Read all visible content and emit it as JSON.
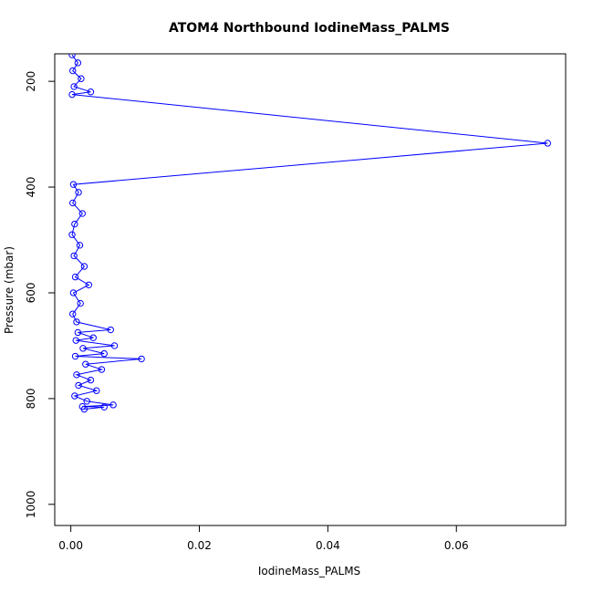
{
  "chart_data": {
    "type": "line",
    "title": "ATOM4 Northbound IodineMass_PALMS",
    "xlabel": "IodineMass_PALMS",
    "ylabel": "Pressure (mbar)",
    "xlim": [
      -0.0025,
      0.077
    ],
    "ylim": [
      1040,
      148
    ],
    "y_reversed": true,
    "xticks": [
      0.0,
      0.02,
      0.04,
      0.06
    ],
    "xtick_labels": [
      "0.00",
      "0.02",
      "0.04",
      "0.06"
    ],
    "yticks": [
      200,
      400,
      600,
      800,
      1000
    ],
    "ytick_labels": [
      "200",
      "400",
      "600",
      "800",
      "1000"
    ],
    "grid": false,
    "series": [
      {
        "color": "#0000ff",
        "marker": "open-circle",
        "points": [
          {
            "x": 0.0002,
            "p": 150
          },
          {
            "x": 0.0011,
            "p": 165
          },
          {
            "x": 0.0003,
            "p": 180
          },
          {
            "x": 0.0016,
            "p": 195
          },
          {
            "x": 0.0005,
            "p": 210
          },
          {
            "x": 0.0031,
            "p": 220
          },
          {
            "x": 0.0002,
            "p": 225
          },
          {
            "x": 0.0742,
            "p": 317
          },
          {
            "x": 0.0004,
            "p": 395
          },
          {
            "x": 0.0012,
            "p": 410
          },
          {
            "x": 0.0003,
            "p": 430
          },
          {
            "x": 0.0018,
            "p": 450
          },
          {
            "x": 0.0006,
            "p": 470
          },
          {
            "x": 0.0002,
            "p": 490
          },
          {
            "x": 0.0014,
            "p": 510
          },
          {
            "x": 0.0005,
            "p": 530
          },
          {
            "x": 0.0021,
            "p": 550
          },
          {
            "x": 0.0007,
            "p": 570
          },
          {
            "x": 0.0028,
            "p": 585
          },
          {
            "x": 0.0004,
            "p": 600
          },
          {
            "x": 0.0015,
            "p": 620
          },
          {
            "x": 0.0003,
            "p": 640
          },
          {
            "x": 0.0009,
            "p": 655
          },
          {
            "x": 0.0062,
            "p": 670
          },
          {
            "x": 0.0011,
            "p": 675
          },
          {
            "x": 0.0035,
            "p": 685
          },
          {
            "x": 0.0008,
            "p": 690
          },
          {
            "x": 0.0068,
            "p": 700
          },
          {
            "x": 0.0019,
            "p": 705
          },
          {
            "x": 0.0052,
            "p": 715
          },
          {
            "x": 0.0007,
            "p": 720
          },
          {
            "x": 0.011,
            "p": 725
          },
          {
            "x": 0.0023,
            "p": 735
          },
          {
            "x": 0.0048,
            "p": 745
          },
          {
            "x": 0.0009,
            "p": 755
          },
          {
            "x": 0.0031,
            "p": 765
          },
          {
            "x": 0.0012,
            "p": 775
          },
          {
            "x": 0.004,
            "p": 785
          },
          {
            "x": 0.0006,
            "p": 795
          },
          {
            "x": 0.0025,
            "p": 805
          },
          {
            "x": 0.0066,
            "p": 812
          },
          {
            "x": 0.0018,
            "p": 815
          },
          {
            "x": 0.0052,
            "p": 816
          },
          {
            "x": 0.0021,
            "p": 820
          }
        ]
      }
    ]
  }
}
